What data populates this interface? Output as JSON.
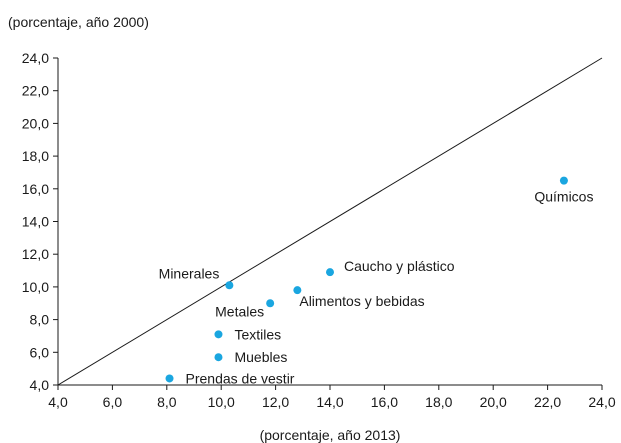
{
  "chart_data": {
    "type": "scatter",
    "title": "",
    "xlabel": "(porcentaje, año 2013)",
    "ylabel": "(porcentaje, año 2000)",
    "xlim": [
      4,
      24
    ],
    "ylim": [
      4,
      24
    ],
    "xticks": [
      "4,0",
      "6,0",
      "8,0",
      "10,0",
      "12,0",
      "14,0",
      "16,0",
      "18,0",
      "20,0",
      "22,0",
      "24,0"
    ],
    "yticks": [
      "4,0",
      "6,0",
      "8,0",
      "10,0",
      "12,0",
      "14,0",
      "16,0",
      "18,0",
      "20,0",
      "22,0",
      "24,0"
    ],
    "reference_line": "y = x",
    "grid": false,
    "point_color": "#1aa6e0",
    "line_color": "#1a1a1a",
    "points": [
      {
        "label": "Químicos",
        "x": 22.6,
        "y": 16.5,
        "label_pos": "below"
      },
      {
        "label": "Caucho y plástico",
        "x": 14.0,
        "y": 10.9,
        "label_pos": "upper-right"
      },
      {
        "label": "Minerales",
        "x": 10.3,
        "y": 10.1,
        "label_pos": "upper-left"
      },
      {
        "label": "Alimentos y bebidas",
        "x": 12.8,
        "y": 9.8,
        "label_pos": "lower-right"
      },
      {
        "label": "Metales",
        "x": 11.8,
        "y": 9.0,
        "label_pos": "lower-left"
      },
      {
        "label": "Textiles",
        "x": 9.9,
        "y": 7.1,
        "label_pos": "right"
      },
      {
        "label": "Muebles",
        "x": 9.9,
        "y": 5.7,
        "label_pos": "right"
      },
      {
        "label": "Prendas de vestir",
        "x": 8.1,
        "y": 4.4,
        "label_pos": "right"
      }
    ]
  }
}
